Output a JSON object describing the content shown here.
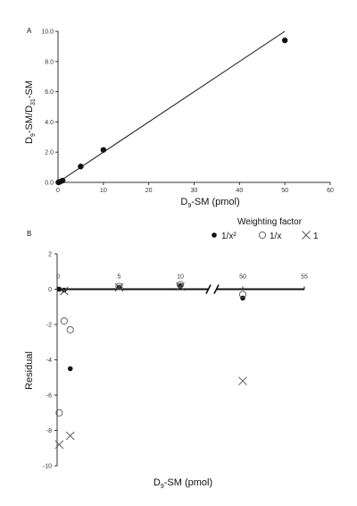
{
  "chart_data": [
    {
      "type": "scatter",
      "panel_label": "A",
      "xlabel": {
        "main": "D",
        "sub": "9",
        "rest": "-SM (pmol)"
      },
      "ylabel": {
        "a": "D",
        "a_sub": "9",
        "b": "-SM/D",
        "b_sub": "31",
        "c": "-SM"
      },
      "xlim": [
        0,
        60
      ],
      "ylim": [
        0,
        10
      ],
      "x_ticks": [
        0,
        10,
        20,
        30,
        40,
        50,
        60
      ],
      "y_ticks": [
        0,
        2,
        4,
        6,
        8,
        10
      ],
      "y_tick_labels": [
        "0.0",
        "2.0",
        "4.0",
        "6.0",
        "8.0",
        "10.0"
      ],
      "points": [
        {
          "x": 0.1,
          "y": 0.0
        },
        {
          "x": 0.5,
          "y": 0.05
        },
        {
          "x": 1,
          "y": 0.12
        },
        {
          "x": 5,
          "y": 1.05
        },
        {
          "x": 10,
          "y": 2.15
        },
        {
          "x": 50,
          "y": 9.4
        }
      ],
      "fit_line": {
        "x": [
          0,
          50
        ],
        "y": [
          0,
          10
        ]
      },
      "grid": false
    },
    {
      "type": "scatter",
      "panel_label": "B",
      "xlabel": {
        "main": "D",
        "sub": "9",
        "rest": "-SM (pmol)"
      },
      "ylabel": "Residual",
      "legend_title": "Weighting factor",
      "legend_placement": "top-right",
      "x_ticks": [
        0,
        5,
        10,
        50,
        55
      ],
      "x_axis_break": [
        10,
        50
      ],
      "ylim": [
        -10,
        2
      ],
      "y_ticks": [
        -10,
        -8,
        -6,
        -4,
        -2,
        0,
        2
      ],
      "series": [
        {
          "name": "1/x²",
          "marker": "filled-circle",
          "points": [
            {
              "x": 0.1,
              "y": 0.0
            },
            {
              "x": 0.5,
              "y": -0.05
            },
            {
              "x": 1,
              "y": -4.5
            },
            {
              "x": 5,
              "y": 0.1
            },
            {
              "x": 10,
              "y": 0.2
            },
            {
              "x": 50,
              "y": -0.5
            }
          ]
        },
        {
          "name": "1/x",
          "marker": "open-circle",
          "points": [
            {
              "x": 0.1,
              "y": -7.0
            },
            {
              "x": 0.5,
              "y": -1.8
            },
            {
              "x": 1,
              "y": -2.3
            },
            {
              "x": 5,
              "y": 0.15
            },
            {
              "x": 10,
              "y": 0.25
            },
            {
              "x": 50,
              "y": -0.3
            }
          ]
        },
        {
          "name": "1",
          "marker": "cross",
          "points": [
            {
              "x": 0.1,
              "y": -8.8
            },
            {
              "x": 0.5,
              "y": -0.1
            },
            {
              "x": 1,
              "y": -8.3
            },
            {
              "x": 5,
              "y": 0.1
            },
            {
              "x": 10,
              "y": 0.15
            },
            {
              "x": 50,
              "y": -5.2
            }
          ]
        }
      ],
      "grid": false
    }
  ]
}
